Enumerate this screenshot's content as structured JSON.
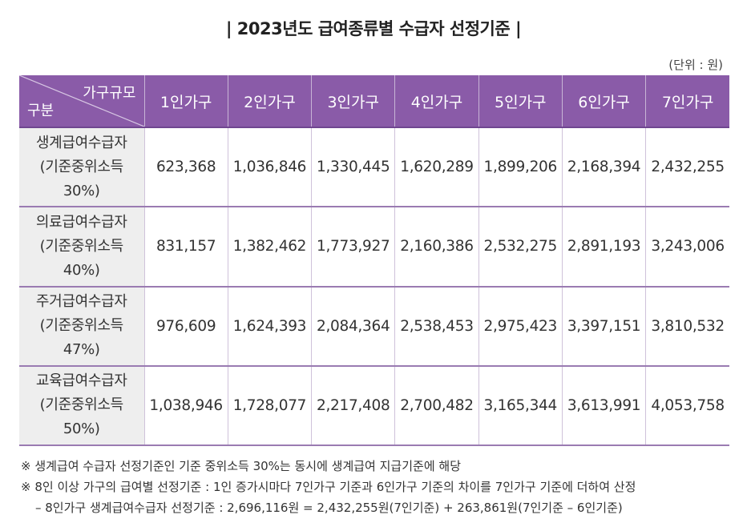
{
  "title": "| 2023년도 급여종류별 수급자 선정기준 |",
  "unit": "(단위 : 원)",
  "table": {
    "corner_top": "가구규모",
    "corner_bottom": "구분",
    "columns": [
      "1인가구",
      "2인가구",
      "3인가구",
      "4인가구",
      "5인가구",
      "6인가구",
      "7인가구"
    ],
    "rows": [
      {
        "label_line1": "생계급여수급자",
        "label_line2": "(기준중위소득",
        "label_line3": "30%)",
        "values": [
          "623,368",
          "1,036,846",
          "1,330,445",
          "1,620,289",
          "1,899,206",
          "2,168,394",
          "2,432,255"
        ]
      },
      {
        "label_line1": "의료급여수급자",
        "label_line2": "(기준중위소득",
        "label_line3": "40%)",
        "values": [
          "831,157",
          "1,382,462",
          "1,773,927",
          "2,160,386",
          "2,532,275",
          "2,891,193",
          "3,243,006"
        ]
      },
      {
        "label_line1": "주거급여수급자",
        "label_line2": "(기준중위소득",
        "label_line3": "47%)",
        "values": [
          "976,609",
          "1,624,393",
          "2,084,364",
          "2,538,453",
          "2,975,423",
          "3,397,151",
          "3,810,532"
        ]
      },
      {
        "label_line1": "교육급여수급자",
        "label_line2": "(기준중위소득",
        "label_line3": "50%)",
        "values": [
          "1,038,946",
          "1,728,077",
          "2,217,408",
          "2,700,482",
          "3,165,344",
          "3,613,991",
          "4,053,758"
        ]
      }
    ]
  },
  "notes": [
    "※ 생계급여 수급자 선정기준인 기준 중위소득 30%는 동시에 생계급여 지급기준에 해당",
    "※ 8인 이상 가구의 급여별 선정기준 : 1인 증가시마다 7인가구 기준과 6인가구 기준의 차이를 7인가구 기준에 더하여 산정",
    "– 8인가구 생계급여수급자 선정기준 : 2,696,116원 = 2,432,255원(7인기준) + 263,861원(7인기준 – 6인기준)"
  ],
  "colors": {
    "header_bg": "#8a5ba8",
    "rowhead_bg": "#eeeeee",
    "row_border": "#9a7bb2"
  }
}
